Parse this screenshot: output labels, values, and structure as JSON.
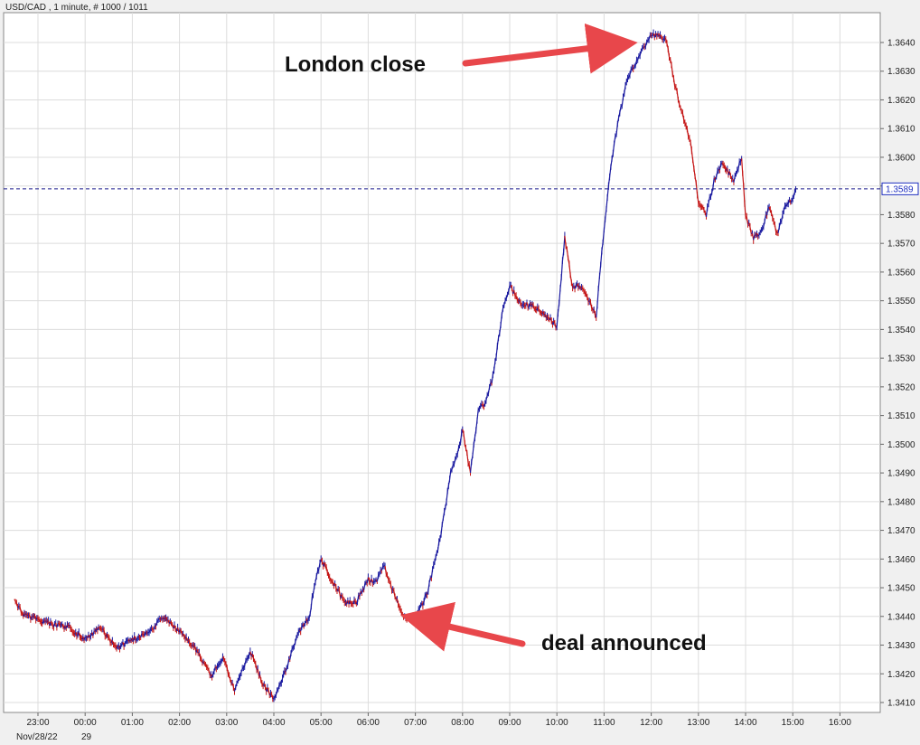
{
  "header": {
    "title": "USD/CAD , 1 minute, # 1000 / 1011"
  },
  "chart_data": {
    "type": "line",
    "title": "USD/CAD , 1 minute, # 1000 / 1011",
    "xlabel": "",
    "ylabel": "",
    "ylim": [
      1.3406,
      1.3658
    ],
    "x_tick_labels": [
      "23:00",
      "00:00",
      "01:00",
      "02:00",
      "03:00",
      "04:00",
      "05:00",
      "06:00",
      "07:00",
      "08:00",
      "09:00",
      "10:00",
      "11:00",
      "12:00",
      "13:00",
      "14:00",
      "15:00",
      "16:00"
    ],
    "x_sub_labels": [
      "Nov/28/22",
      "29"
    ],
    "y_ticks": [
      "1.3410",
      "1.3420",
      "1.3430",
      "1.3440",
      "1.3450",
      "1.3460",
      "1.3470",
      "1.3480",
      "1.3490",
      "1.3500",
      "1.3510",
      "1.3520",
      "1.3530",
      "1.3540",
      "1.3550",
      "1.3560",
      "1.3570",
      "1.3580",
      "1.3590",
      "1.3600",
      "1.3610",
      "1.3620",
      "1.3630",
      "1.3640"
    ],
    "current_price": "1.3589",
    "grid": true,
    "series": [
      {
        "x": [
          "22:30",
          "22:40",
          "23:00",
          "23:20",
          "23:40",
          "00:00",
          "00:20",
          "00:40",
          "01:00",
          "01:20",
          "01:40",
          "01:55",
          "02:10",
          "02:25",
          "02:40",
          "02:55",
          "03:10",
          "03:30",
          "03:45",
          "04:00",
          "04:15",
          "04:30",
          "04:45",
          "04:50",
          "05:00",
          "05:15",
          "05:30",
          "05:45",
          "06:00",
          "06:10",
          "06:20",
          "06:30",
          "06:45",
          "07:00",
          "07:15",
          "07:30",
          "07:45",
          "07:55",
          "08:00",
          "08:10",
          "08:20",
          "08:30",
          "08:40",
          "08:50",
          "09:00",
          "09:15",
          "09:30",
          "09:45",
          "10:00",
          "10:10",
          "10:20",
          "10:30",
          "10:40",
          "10:50",
          "11:00",
          "11:10",
          "11:20",
          "11:30",
          "11:40",
          "11:50",
          "12:00",
          "12:10",
          "12:20",
          "12:30",
          "12:40",
          "12:50",
          "13:00",
          "13:10",
          "13:20",
          "13:30",
          "13:45",
          "13:55",
          "14:00",
          "14:10",
          "14:20",
          "14:30",
          "14:40",
          "14:50",
          "15:00",
          "15:05"
        ],
        "y": [
          1.3446,
          1.3441,
          1.3439,
          1.3437,
          1.3436,
          1.3432,
          1.3436,
          1.3429,
          1.3432,
          1.3434,
          1.344,
          1.3436,
          1.3432,
          1.3427,
          1.3419,
          1.3426,
          1.3414,
          1.3428,
          1.3417,
          1.3411,
          1.3421,
          1.3434,
          1.344,
          1.3448,
          1.346,
          1.3452,
          1.3445,
          1.3445,
          1.3453,
          1.3452,
          1.3458,
          1.345,
          1.344,
          1.3439,
          1.3448,
          1.3465,
          1.349,
          1.3498,
          1.3505,
          1.349,
          1.3512,
          1.3515,
          1.3525,
          1.3545,
          1.3555,
          1.3549,
          1.3548,
          1.3545,
          1.3541,
          1.3572,
          1.3555,
          1.3555,
          1.355,
          1.3545,
          1.3575,
          1.36,
          1.3615,
          1.3628,
          1.3632,
          1.3638,
          1.3643,
          1.3642,
          1.364,
          1.3625,
          1.3615,
          1.3605,
          1.3585,
          1.358,
          1.3592,
          1.3598,
          1.3592,
          1.36,
          1.358,
          1.3572,
          1.3574,
          1.3583,
          1.3573,
          1.3583,
          1.3586,
          1.3589
        ]
      }
    ],
    "annotations": [
      {
        "text": "London close"
      },
      {
        "text": "deal announced"
      }
    ]
  },
  "colors": {
    "background": "#ffffff",
    "grid": "#dcdcdc",
    "up": "#1a1aa0",
    "down": "#c41515",
    "arrow": "#e8474b",
    "price_line": "#1a1a8c",
    "price_box": "#2030c0"
  }
}
